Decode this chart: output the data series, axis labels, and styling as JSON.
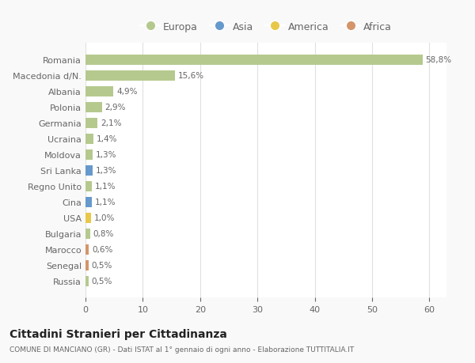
{
  "countries": [
    "Romania",
    "Macedonia d/N.",
    "Albania",
    "Polonia",
    "Germania",
    "Ucraina",
    "Moldova",
    "Sri Lanka",
    "Regno Unito",
    "Cina",
    "USA",
    "Bulgaria",
    "Marocco",
    "Senegal",
    "Russia"
  ],
  "values": [
    58.8,
    15.6,
    4.9,
    2.9,
    2.1,
    1.4,
    1.3,
    1.3,
    1.1,
    1.1,
    1.0,
    0.8,
    0.6,
    0.5,
    0.5
  ],
  "labels": [
    "58,8%",
    "15,6%",
    "4,9%",
    "2,9%",
    "2,1%",
    "1,4%",
    "1,3%",
    "1,3%",
    "1,1%",
    "1,1%",
    "1,0%",
    "0,8%",
    "0,6%",
    "0,5%",
    "0,5%"
  ],
  "colors": [
    "#b5c98e",
    "#b5c98e",
    "#b5c98e",
    "#b5c98e",
    "#b5c98e",
    "#b5c98e",
    "#b5c98e",
    "#6699cc",
    "#b5c98e",
    "#6699cc",
    "#e8c84a",
    "#b5c98e",
    "#d4956a",
    "#d4956a",
    "#b5c98e"
  ],
  "legend": {
    "Europa": "#b5c98e",
    "Asia": "#6699cc",
    "America": "#e8c84a",
    "Africa": "#d4956a"
  },
  "title": "Cittadini Stranieri per Cittadinanza",
  "subtitle": "COMUNE DI MANCIANO (GR) - Dati ISTAT al 1° gennaio di ogni anno - Elaborazione TUTTITALIA.IT",
  "xlim": [
    0,
    63
  ],
  "background_color": "#f9f9f9",
  "bar_background": "#ffffff",
  "grid_color": "#e0e0e0",
  "text_color": "#666666",
  "title_color": "#222222"
}
